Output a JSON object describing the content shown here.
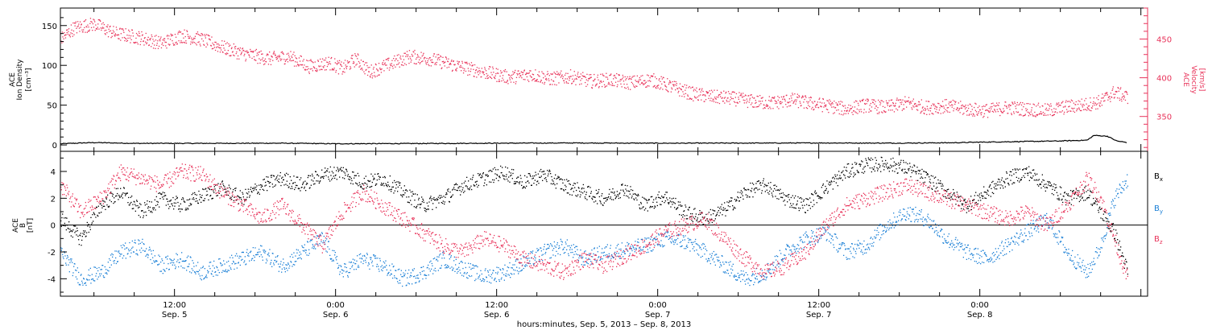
{
  "colors": {
    "axis": "#000000",
    "density": "#000000",
    "velocity": "#e8335a",
    "bx": "#000000",
    "by": "#1a7fd6",
    "bz": "#e8335a"
  },
  "chart_data": [
    {
      "type": "scatter",
      "panel": "top",
      "x_unit": "hours since 2013-09-05 00:00 UT",
      "xlim": [
        3.5,
        84.5
      ],
      "left_axis": {
        "label_lines": [
          "ACE",
          "Ion Density",
          "[cm⁻³]"
        ],
        "ylim": [
          -8,
          172
        ],
        "ticks": [
          0,
          50,
          100,
          150
        ],
        "tick_labels": [
          "0",
          "50",
          "100",
          "150"
        ]
      },
      "right_axis": {
        "label_lines": [
          "ACE",
          "Velocity",
          "[km/s]"
        ],
        "ylim": [
          305,
          490
        ],
        "ticks": [
          350,
          400,
          450
        ],
        "tick_labels": [
          "350",
          "400",
          "450"
        ]
      },
      "series": [
        {
          "key": "density",
          "axis": "left",
          "color": "#000000",
          "points": [
            [
              3.5,
              1.5
            ],
            [
              6,
              3
            ],
            [
              9,
              2
            ],
            [
              14,
              2
            ],
            [
              20,
              2.2
            ],
            [
              24,
              1.5
            ],
            [
              30,
              1.8
            ],
            [
              36,
              2.2
            ],
            [
              42,
              2.5
            ],
            [
              48,
              2.2
            ],
            [
              54,
              2.3
            ],
            [
              60,
              2.5
            ],
            [
              66,
              2.3
            ],
            [
              70,
              2.8
            ],
            [
              72,
              3.5
            ],
            [
              74,
              4
            ],
            [
              76,
              4.5
            ],
            [
              78,
              5
            ],
            [
              79,
              5.5
            ],
            [
              80,
              6
            ],
            [
              80.5,
              12
            ],
            [
              81.5,
              11
            ],
            [
              82.2,
              5
            ],
            [
              83,
              3
            ]
          ]
        },
        {
          "key": "velocity",
          "axis": "right",
          "color": "#e8335a",
          "points": [
            [
              3.5,
              450
            ],
            [
              4.5,
              465
            ],
            [
              6,
              470
            ],
            [
              7.5,
              458
            ],
            [
              9.5,
              452
            ],
            [
              11,
              445
            ],
            [
              12.5,
              455
            ],
            [
              14,
              450
            ],
            [
              15.5,
              440
            ],
            [
              17,
              432
            ],
            [
              19,
              425
            ],
            [
              20.5,
              428
            ],
            [
              22,
              415
            ],
            [
              23.5,
              420
            ],
            [
              24.5,
              412
            ],
            [
              25.5,
              425
            ],
            [
              26.5,
              408
            ],
            [
              28,
              418
            ],
            [
              29.5,
              428
            ],
            [
              31,
              425
            ],
            [
              32.5,
              418
            ],
            [
              34,
              412
            ],
            [
              35.5,
              406
            ],
            [
              37,
              401
            ],
            [
              38.5,
              405
            ],
            [
              40,
              399
            ],
            [
              41.5,
              402
            ],
            [
              43,
              396
            ],
            [
              44.5,
              398
            ],
            [
              46,
              394
            ],
            [
              47.5,
              398
            ],
            [
              49,
              389
            ],
            [
              50.5,
              380
            ],
            [
              52,
              376
            ],
            [
              53.5,
              374
            ],
            [
              55,
              370
            ],
            [
              56.5,
              368
            ],
            [
              58,
              372
            ],
            [
              59.5,
              367
            ],
            [
              60.5,
              365
            ],
            [
              62,
              360
            ],
            [
              63.5,
              365
            ],
            [
              65,
              362
            ],
            [
              66.5,
              368
            ],
            [
              68,
              362
            ],
            [
              69.5,
              364
            ],
            [
              71,
              360
            ],
            [
              72.5,
              358
            ],
            [
              74,
              362
            ],
            [
              75.5,
              360
            ],
            [
              77,
              358
            ],
            [
              78.5,
              363
            ],
            [
              80,
              366
            ],
            [
              81,
              370
            ],
            [
              82,
              382
            ],
            [
              83,
              375
            ]
          ]
        }
      ]
    },
    {
      "type": "scatter",
      "panel": "bottom",
      "x_unit": "hours since 2013-09-05 00:00 UT",
      "xlim": [
        3.5,
        84.5
      ],
      "y_axis": {
        "label_lines": [
          "ACE",
          "B",
          "[nT]"
        ],
        "ylim": [
          -5.3,
          5.5
        ],
        "ticks": [
          -4,
          -2,
          0,
          2,
          4
        ],
        "tick_labels": [
          "-4",
          "-2",
          "0",
          "2",
          "4"
        ],
        "zero_line": true
      },
      "legend": {
        "placement": "right",
        "entries": [
          {
            "key": "bx",
            "label": "B",
            "subscript": "x",
            "color": "#000000"
          },
          {
            "key": "by",
            "label": "B",
            "subscript": "y",
            "color": "#1a7fd6"
          },
          {
            "key": "bz",
            "label": "B",
            "subscript": "z",
            "color": "#e8335a"
          }
        ]
      },
      "series": [
        {
          "key": "bx",
          "color": "#000000",
          "points": [
            [
              3.5,
              0.5
            ],
            [
              5,
              -1
            ],
            [
              6.5,
              1.5
            ],
            [
              8,
              2.5
            ],
            [
              9.5,
              1
            ],
            [
              11,
              2
            ],
            [
              12.5,
              1.5
            ],
            [
              14,
              2.2
            ],
            [
              15.5,
              2.8
            ],
            [
              17,
              2
            ],
            [
              18.5,
              3
            ],
            [
              20,
              3.5
            ],
            [
              21.5,
              3
            ],
            [
              23,
              3.8
            ],
            [
              24.5,
              4
            ],
            [
              26,
              3.2
            ],
            [
              27.5,
              3.5
            ],
            [
              29,
              2.5
            ],
            [
              30.5,
              1.5
            ],
            [
              32,
              2
            ],
            [
              33.5,
              3
            ],
            [
              35,
              3.5
            ],
            [
              36.5,
              4
            ],
            [
              38,
              3.2
            ],
            [
              39.5,
              3.8
            ],
            [
              41,
              3
            ],
            [
              42.5,
              2.5
            ],
            [
              44,
              2
            ],
            [
              45.5,
              2.8
            ],
            [
              47,
              1.5
            ],
            [
              48.5,
              2.2
            ],
            [
              50,
              1
            ],
            [
              51.5,
              0.5
            ],
            [
              53,
              1.2
            ],
            [
              54.5,
              2.5
            ],
            [
              56,
              3
            ],
            [
              57.5,
              2
            ],
            [
              59,
              1.5
            ],
            [
              60.5,
              2.8
            ],
            [
              62,
              4
            ],
            [
              63.5,
              4.5
            ],
            [
              65,
              4.6
            ],
            [
              66.5,
              4.3
            ],
            [
              68,
              3.5
            ],
            [
              69.5,
              2.5
            ],
            [
              71,
              1.5
            ],
            [
              72.5,
              2.5
            ],
            [
              74,
              3.5
            ],
            [
              75.5,
              4
            ],
            [
              77,
              3
            ],
            [
              78.5,
              2
            ],
            [
              80,
              2.5
            ],
            [
              81,
              1
            ],
            [
              82,
              -0.5
            ],
            [
              83,
              -3.5
            ]
          ]
        },
        {
          "key": "by",
          "color": "#1a7fd6",
          "points": [
            [
              3.5,
              -2
            ],
            [
              5,
              -4
            ],
            [
              6.5,
              -3.5
            ],
            [
              8,
              -2
            ],
            [
              9.5,
              -1.5
            ],
            [
              11,
              -3
            ],
            [
              12.5,
              -2.5
            ],
            [
              14,
              -3.5
            ],
            [
              15.5,
              -3
            ],
            [
              17,
              -2.5
            ],
            [
              18.5,
              -2
            ],
            [
              20,
              -3
            ],
            [
              21.5,
              -2
            ],
            [
              23,
              -1
            ],
            [
              24.5,
              -3.5
            ],
            [
              26,
              -2.5
            ],
            [
              27.5,
              -3
            ],
            [
              29,
              -4
            ],
            [
              30.5,
              -3.5
            ],
            [
              32,
              -2.5
            ],
            [
              33.5,
              -3.2
            ],
            [
              35,
              -3.8
            ],
            [
              36.5,
              -3.5
            ],
            [
              38,
              -2.8
            ],
            [
              39.5,
              -2
            ],
            [
              41,
              -1.5
            ],
            [
              42.5,
              -2.5
            ],
            [
              44,
              -2
            ],
            [
              45.5,
              -1.8
            ],
            [
              47,
              -1.5
            ],
            [
              48.5,
              -1
            ],
            [
              50,
              -1.2
            ],
            [
              51.5,
              -2
            ],
            [
              53,
              -3
            ],
            [
              54.5,
              -4
            ],
            [
              56,
              -3.5
            ],
            [
              57.5,
              -2
            ],
            [
              59,
              -1
            ],
            [
              60.5,
              -0.5
            ],
            [
              62,
              -2
            ],
            [
              63.5,
              -1.5
            ],
            [
              65,
              0
            ],
            [
              66.5,
              1
            ],
            [
              68,
              0.5
            ],
            [
              69.5,
              -1
            ],
            [
              71,
              -2
            ],
            [
              72.5,
              -2.5
            ],
            [
              74,
              -1.5
            ],
            [
              75.5,
              -0.5
            ],
            [
              77,
              0.5
            ],
            [
              78.5,
              -2
            ],
            [
              80,
              -3.5
            ],
            [
              81,
              -1.5
            ],
            [
              82,
              2
            ],
            [
              83,
              3.5
            ]
          ]
        },
        {
          "key": "bz",
          "color": "#e8335a",
          "points": [
            [
              3.5,
              3
            ],
            [
              5,
              1
            ],
            [
              6.5,
              2
            ],
            [
              8,
              4
            ],
            [
              9.5,
              3.5
            ],
            [
              11,
              3
            ],
            [
              12.5,
              4
            ],
            [
              14,
              3.8
            ],
            [
              15.5,
              2.5
            ],
            [
              17,
              1.5
            ],
            [
              18.5,
              0.5
            ],
            [
              20,
              1.5
            ],
            [
              21.5,
              0
            ],
            [
              23,
              -1.5
            ],
            [
              24.5,
              1
            ],
            [
              26,
              2.5
            ],
            [
              27.5,
              1.5
            ],
            [
              29,
              0.5
            ],
            [
              30.5,
              -0.5
            ],
            [
              32,
              -1.5
            ],
            [
              33.5,
              -2
            ],
            [
              35,
              -1
            ],
            [
              36.5,
              -1.5
            ],
            [
              38,
              -2.5
            ],
            [
              39.5,
              -3
            ],
            [
              41,
              -3.5
            ],
            [
              42.5,
              -2.5
            ],
            [
              44,
              -3
            ],
            [
              45.5,
              -2.2
            ],
            [
              47,
              -1.5
            ],
            [
              48.5,
              -0.5
            ],
            [
              50,
              0
            ],
            [
              51.5,
              0.5
            ],
            [
              53,
              -1
            ],
            [
              54.5,
              -2.5
            ],
            [
              56,
              -3.5
            ],
            [
              57.5,
              -3
            ],
            [
              59,
              -2
            ],
            [
              60.5,
              0
            ],
            [
              62,
              1.5
            ],
            [
              63.5,
              2
            ],
            [
              65,
              2.5
            ],
            [
              66.5,
              3
            ],
            [
              68,
              2.5
            ],
            [
              69.5,
              2
            ],
            [
              71,
              1.5
            ],
            [
              72.5,
              1
            ],
            [
              74,
              0.5
            ],
            [
              75.5,
              1
            ],
            [
              77,
              0
            ],
            [
              78.5,
              1.5
            ],
            [
              80,
              3.5
            ],
            [
              81,
              2
            ],
            [
              82,
              -1
            ],
            [
              83,
              -4
            ]
          ]
        }
      ]
    }
  ],
  "x_axis": {
    "major_ticks": [
      12,
      24,
      36,
      48,
      60,
      72,
      84
    ],
    "minor_step": 3,
    "major_labels": [
      {
        "x": 12,
        "time": "12:00",
        "day": "Sep. 5"
      },
      {
        "x": 24,
        "time": "0:00",
        "day": "Sep. 6"
      },
      {
        "x": 36,
        "time": "12:00",
        "day": "Sep. 6"
      },
      {
        "x": 48,
        "time": "0:00",
        "day": "Sep. 7"
      },
      {
        "x": 60,
        "time": "12:00",
        "day": "Sep. 7"
      },
      {
        "x": 72,
        "time": "0:00",
        "day": "Sep. 8"
      }
    ],
    "title": "hours:minutes, Sep.  5, 2013 – Sep.  8, 2013"
  }
}
